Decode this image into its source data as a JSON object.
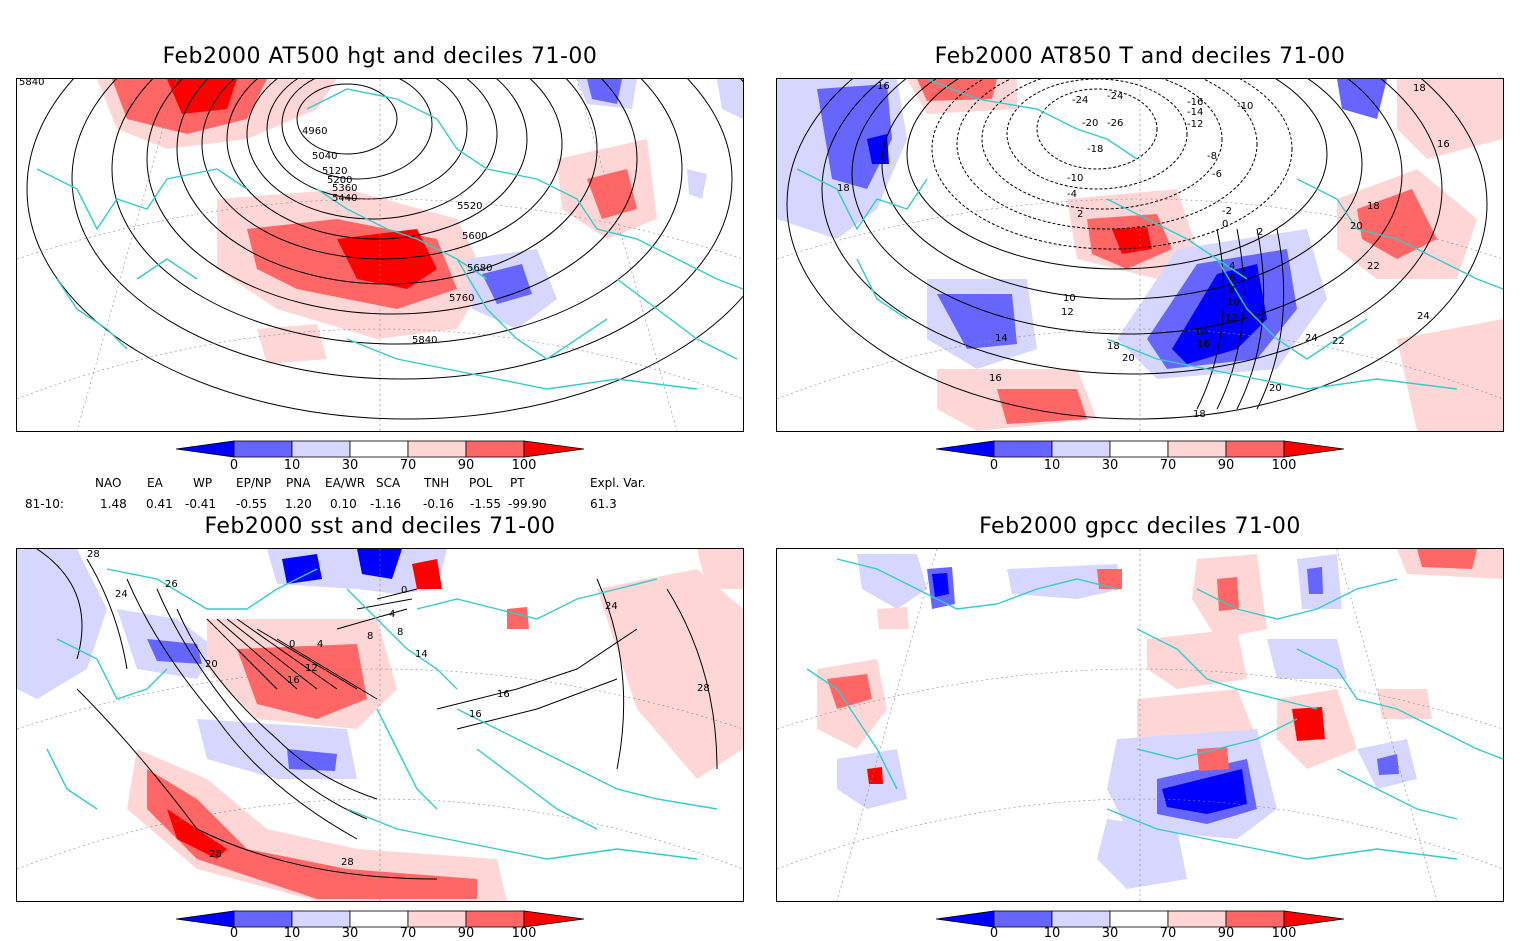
{
  "panels": [
    {
      "title": "Feb2000 AT500 hgt and deciles 71-00",
      "contour_labels": [
        "5840",
        "4960",
        "5040",
        "5120",
        "5200",
        "5360",
        "5440",
        "5520",
        "5600",
        "5680",
        "5760",
        "5840"
      ]
    },
    {
      "title": "Feb2000 AT850 T and deciles 71-00",
      "contour_labels": [
        "16",
        "-24",
        "-24",
        "-16",
        "-14",
        "-12",
        "-10",
        "-26",
        "-20",
        "-18",
        "-8",
        "-6",
        "-10",
        "-4",
        "-2",
        "0",
        "2",
        "2",
        "4",
        "6",
        "8",
        "10",
        "12",
        "14",
        "16",
        "18",
        "18",
        "20",
        "20",
        "22",
        "22",
        "24",
        "24",
        "16",
        "18",
        "16",
        "20",
        "18",
        "10",
        "12",
        "14",
        "16",
        "18"
      ]
    },
    {
      "title": "Feb2000 sst and deciles 71-00",
      "contour_labels": [
        "28",
        "26",
        "24",
        "20",
        "0",
        "4",
        "8",
        "12",
        "16",
        "0",
        "4",
        "8",
        "14",
        "16",
        "16",
        "24",
        "28",
        "28",
        "28"
      ]
    },
    {
      "title": "Feb2000 gpcc deciles 71-00",
      "contour_labels": []
    }
  ],
  "colorbar": {
    "tick_labels": [
      "0",
      "10",
      "30",
      "70",
      "90",
      "100"
    ],
    "colors": [
      "#0000ff",
      "#6666ff",
      "#d6d6ff",
      "#ffffff",
      "#ffd6d6",
      "#ff6666",
      "#ff0000"
    ]
  },
  "indices": {
    "headers": [
      "NAO",
      "EA",
      "WP",
      "EP/NP",
      "PNA",
      "EA/WR",
      "SCA",
      "TNH",
      "POL",
      "PT",
      "Expl. Var."
    ],
    "row_label": "81-10:",
    "values": [
      "1.48",
      "0.41",
      "-0.41",
      "-0.55",
      "1.20",
      "0.10",
      "-1.16",
      "-0.16",
      "-1.55",
      "-99.90",
      "61.3"
    ]
  },
  "colors": {
    "coastline": "#33cccc",
    "blue_strong": "#0000ff",
    "blue_mid": "#6666ff",
    "blue_light": "#d6d6ff",
    "red_light": "#ffd6d6",
    "red_mid": "#ff6666",
    "red_strong": "#ff0000"
  }
}
